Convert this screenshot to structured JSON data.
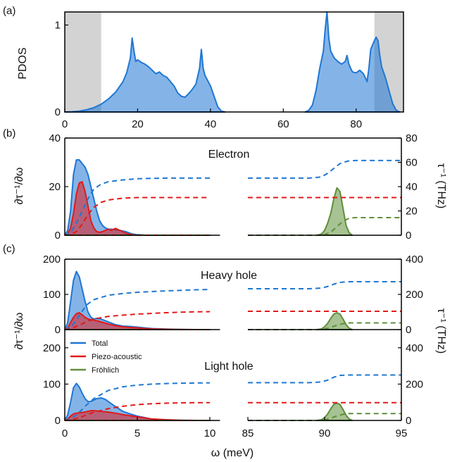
{
  "chart_data": [
    {
      "panel": "(a)",
      "type": "area",
      "ylabel": "PDOS",
      "xlim": [
        0,
        93
      ],
      "ylim": [
        0,
        1.15
      ],
      "xticks": [
        0,
        20,
        40,
        60,
        80
      ],
      "yticks": [
        0,
        1
      ],
      "shaded_regions": [
        [
          0,
          10
        ],
        [
          85,
          93
        ]
      ],
      "color": "#1f77d3",
      "series": [
        {
          "x": [
            0,
            2,
            4,
            6,
            8,
            10,
            12,
            14,
            16,
            17,
            18,
            18.5,
            19,
            19.5,
            20,
            21,
            22,
            23,
            24,
            25,
            26,
            27,
            28,
            29,
            30,
            31,
            32,
            33,
            34,
            35,
            36,
            37,
            37.5,
            38,
            38.5,
            39,
            40,
            41,
            42,
            43,
            44
          ],
          "y": [
            0,
            0.003,
            0.01,
            0.025,
            0.05,
            0.09,
            0.15,
            0.23,
            0.35,
            0.45,
            0.62,
            0.85,
            0.7,
            0.58,
            0.6,
            0.57,
            0.55,
            0.52,
            0.48,
            0.44,
            0.46,
            0.42,
            0.4,
            0.35,
            0.3,
            0.22,
            0.18,
            0.17,
            0.21,
            0.26,
            0.32,
            0.5,
            0.72,
            0.5,
            0.42,
            0.38,
            0.3,
            0.18,
            0.06,
            0.01,
            0
          ]
        },
        {
          "x": [
            66,
            67,
            68,
            69,
            70,
            71,
            71.5,
            72,
            72.5,
            73,
            74,
            75,
            76,
            77,
            77.5,
            78,
            78.5,
            79,
            80,
            81,
            82,
            83,
            83.5,
            84,
            85,
            85.5,
            86,
            86.5,
            87,
            88,
            89,
            90,
            91,
            92
          ],
          "y": [
            0,
            0.02,
            0.08,
            0.25,
            0.5,
            0.7,
            0.95,
            1.15,
            0.85,
            0.7,
            0.62,
            0.58,
            0.55,
            0.58,
            0.65,
            0.55,
            0.5,
            0.46,
            0.45,
            0.48,
            0.44,
            0.35,
            0.5,
            0.72,
            0.82,
            0.86,
            0.82,
            0.65,
            0.52,
            0.4,
            0.25,
            0.1,
            0.02,
            0
          ]
        }
      ]
    },
    {
      "panel": "(b)",
      "type": "area",
      "annotation": "Electron",
      "ylabel_left": "∂τ⁻¹/∂ω",
      "ylabel_right": "τ⁻¹ (THz)",
      "ylim_left": [
        0,
        40
      ],
      "ylim_right": [
        0,
        80
      ],
      "yticks_left": [
        0,
        20,
        40
      ],
      "yticks_right": [
        0,
        20,
        40,
        60,
        80
      ],
      "series": [
        {
          "name": "Total",
          "color": "#1f77d3",
          "x": [
            0,
            0.2,
            0.4,
            0.6,
            0.8,
            1.0,
            1.2,
            1.4,
            1.6,
            1.8,
            2.0,
            2.2,
            2.4,
            2.6,
            2.8,
            3.0,
            3.2,
            3.5,
            3.8,
            4.2,
            4.6,
            5.0,
            5.5,
            6,
            7,
            8,
            9,
            10
          ],
          "y": [
            0,
            2,
            10,
            25,
            31,
            31,
            29.5,
            28,
            25,
            20,
            15,
            10,
            6,
            4,
            3,
            2.5,
            2.5,
            2.2,
            2,
            1.5,
            0.6,
            0.2,
            0.05,
            0,
            0,
            0,
            0,
            0
          ]
        },
        {
          "name": "Piezo-acoustic",
          "color": "#e11a1a",
          "x": [
            0,
            0.2,
            0.4,
            0.6,
            0.8,
            1.0,
            1.2,
            1.4,
            1.6,
            1.8,
            2.0,
            2.2,
            2.4,
            2.6,
            2.8,
            3.0,
            3.2,
            3.5,
            3.8,
            4.2,
            4.6,
            5.0,
            5.5,
            6,
            7,
            8,
            9,
            10
          ],
          "y": [
            0,
            0.5,
            3,
            9,
            17,
            21.5,
            22,
            18,
            12,
            6,
            3,
            1.5,
            1.2,
            1.5,
            2,
            2.5,
            2,
            2.8,
            2,
            0.8,
            0.2,
            0.05,
            0,
            0,
            0,
            0,
            0,
            0
          ]
        },
        {
          "name": "Fröhlich",
          "color": "#5f8f3a",
          "x": [
            89.5,
            89.8,
            90.0,
            90.2,
            90.4,
            90.6,
            90.8,
            91.0,
            91.2,
            91.4,
            91.6,
            91.8
          ],
          "y": [
            0,
            0.5,
            2,
            5,
            9,
            15,
            19.5,
            18,
            11,
            4,
            1,
            0
          ]
        }
      ],
      "cumulative": [
        {
          "name": "Total",
          "color": "#1f77d3",
          "x": [
            0,
            0.4,
            0.8,
            1.2,
            1.6,
            2.0,
            2.5,
            3,
            4,
            5,
            6,
            7,
            8,
            9,
            10,
            85,
            89,
            89.8,
            90.2,
            90.6,
            91.0,
            91.5,
            92,
            93,
            94,
            95
          ],
          "y": [
            0,
            2,
            10,
            20,
            30,
            38,
            42,
            44,
            45.5,
            46.5,
            46.8,
            47,
            47,
            47,
            47,
            47,
            47,
            48,
            51,
            55,
            59,
            61,
            61.5,
            61.5,
            61.5,
            61.5
          ]
        },
        {
          "name": "Piezo-acoustic",
          "color": "#e11a1a",
          "x": [
            0,
            0.4,
            0.8,
            1.2,
            1.6,
            2.0,
            2.5,
            3,
            4,
            5,
            6,
            7,
            8,
            9,
            10,
            85,
            95
          ],
          "y": [
            0,
            0.5,
            3,
            9,
            17,
            23,
            27,
            29,
            30.5,
            31,
            31,
            31,
            31,
            31,
            31,
            31,
            31
          ]
        },
        {
          "name": "Fröhlich",
          "color": "#5f8f3a",
          "x": [
            0,
            10,
            85,
            89.5,
            90.0,
            90.4,
            90.8,
            91.2,
            91.6,
            92,
            95
          ],
          "y": [
            0,
            0,
            0,
            0,
            0.5,
            2.5,
            7,
            11.5,
            14,
            14.5,
            14.5
          ]
        }
      ]
    },
    {
      "panel": "(c)",
      "type": "area",
      "annotation": "Heavy hole",
      "ylabel_left": "∂τ⁻¹/∂ω",
      "ylabel_right": "τ⁻¹ (THz)",
      "ylim_left": [
        0,
        200
      ],
      "ylim_right": [
        0,
        400
      ],
      "yticks_left": [
        0,
        100,
        200
      ],
      "yticks_right": [
        0,
        200,
        400
      ],
      "series": [
        {
          "name": "Total",
          "color": "#1f77d3",
          "x": [
            0,
            0.2,
            0.4,
            0.6,
            0.8,
            1.0,
            1.2,
            1.4,
            1.6,
            1.8,
            2.0,
            2.2,
            2.5,
            3.0,
            3.5,
            4.0,
            4.5,
            5.0,
            5.5,
            6,
            7,
            8,
            9,
            10
          ],
          "y": [
            0,
            20,
            80,
            140,
            165,
            150,
            115,
            80,
            50,
            35,
            30,
            32,
            30,
            22,
            14,
            10,
            9,
            7,
            5,
            3,
            1.5,
            0.5,
            0,
            0
          ]
        },
        {
          "name": "Piezo-acoustic",
          "color": "#e11a1a",
          "x": [
            0,
            0.2,
            0.4,
            0.6,
            0.8,
            1.0,
            1.2,
            1.4,
            1.6,
            1.8,
            2.0,
            2.5,
            3.0,
            3.5,
            4.0,
            4.5,
            5.0,
            5.5,
            6,
            7,
            8,
            9,
            10
          ],
          "y": [
            0,
            5,
            20,
            35,
            45,
            48,
            42,
            35,
            30,
            28,
            27,
            22,
            16,
            11,
            8,
            6,
            5,
            3,
            2,
            1,
            0.3,
            0,
            0
          ]
        },
        {
          "name": "Fröhlich",
          "color": "#5f8f3a",
          "x": [
            89.5,
            89.8,
            90.0,
            90.2,
            90.4,
            90.6,
            90.8,
            91.0,
            91.2,
            91.4,
            91.6,
            91.8
          ],
          "y": [
            0,
            2,
            8,
            18,
            32,
            44,
            48,
            44,
            30,
            14,
            4,
            0
          ]
        }
      ],
      "cumulative": [
        {
          "name": "Total",
          "color": "#1f77d3",
          "x": [
            0,
            0.5,
            1,
            1.5,
            2,
            3,
            4,
            5,
            6,
            7,
            8,
            9,
            10,
            85,
            89,
            89.8,
            90.2,
            90.6,
            91.0,
            91.5,
            92,
            93,
            95
          ],
          "y": [
            0,
            20,
            80,
            140,
            170,
            195,
            205,
            212,
            216,
            220,
            223,
            226,
            228,
            232,
            232,
            236,
            245,
            258,
            268,
            272,
            272,
            272,
            272
          ]
        },
        {
          "name": "Piezo-acoustic",
          "color": "#e11a1a",
          "x": [
            0,
            0.5,
            1,
            1.5,
            2,
            3,
            4,
            5,
            6,
            7,
            8,
            9,
            10,
            85,
            95
          ],
          "y": [
            0,
            8,
            25,
            45,
            60,
            75,
            82,
            88,
            92,
            96,
            99,
            101,
            102,
            104,
            104
          ]
        },
        {
          "name": "Fröhlich",
          "color": "#5f8f3a",
          "x": [
            0,
            10,
            85,
            89.5,
            90.0,
            90.4,
            90.8,
            91.2,
            91.6,
            92,
            95
          ],
          "y": [
            0,
            0,
            0,
            0,
            3,
            12,
            25,
            34,
            38,
            38,
            38
          ]
        }
      ]
    },
    {
      "panel": "",
      "type": "area",
      "annotation": "Light hole",
      "ylim_left": [
        0,
        250
      ],
      "ylim_right": [
        0,
        500
      ],
      "yticks_left": [
        0,
        100,
        200
      ],
      "yticks_right": [
        0,
        200,
        400
      ],
      "xticks_left": [
        0,
        5,
        10
      ],
      "xticks_right": [
        85,
        90,
        95
      ],
      "xlabel": "ω (meV)",
      "legend": {
        "placement": "upper-left",
        "entries": [
          {
            "label": "Total",
            "color": "#1f77d3"
          },
          {
            "label": "Piezo-acoustic",
            "color": "#e11a1a"
          },
          {
            "label": "Fröhlich",
            "color": "#5f8f3a"
          }
        ]
      },
      "series": [
        {
          "name": "Total",
          "color": "#1f77d3",
          "x": [
            0,
            0.2,
            0.4,
            0.6,
            0.8,
            1.0,
            1.2,
            1.4,
            1.6,
            1.8,
            2.0,
            2.2,
            2.5,
            2.8,
            3.0,
            3.5,
            4.0,
            4.5,
            5.0,
            5.5,
            6,
            7,
            8,
            9,
            10
          ],
          "y": [
            0,
            15,
            50,
            90,
            102,
            92,
            75,
            60,
            52,
            52,
            56,
            60,
            62,
            58,
            52,
            38,
            25,
            18,
            12,
            8,
            4,
            1.5,
            0.5,
            0,
            0
          ]
        },
        {
          "name": "Piezo-acoustic",
          "color": "#e11a1a",
          "x": [
            0,
            0.2,
            0.4,
            0.6,
            0.8,
            1.0,
            1.2,
            1.4,
            1.6,
            1.8,
            2.0,
            2.5,
            3.0,
            3.5,
            4.0,
            4.5,
            5.0,
            5.5,
            6,
            7,
            8,
            9,
            10
          ],
          "y": [
            0,
            4,
            12,
            18,
            20,
            21,
            22,
            23,
            25,
            27,
            27,
            25,
            23,
            20,
            16,
            13,
            10,
            7,
            4,
            2,
            0.5,
            0,
            0
          ]
        },
        {
          "name": "Fröhlich",
          "color": "#5f8f3a",
          "x": [
            89.5,
            89.8,
            90.0,
            90.2,
            90.4,
            90.6,
            90.8,
            91.0,
            91.2,
            91.4,
            91.6,
            91.8
          ],
          "y": [
            0,
            2,
            8,
            18,
            32,
            44,
            48,
            44,
            30,
            14,
            4,
            0
          ]
        }
      ],
      "cumulative": [
        {
          "name": "Total",
          "color": "#1f77d3",
          "x": [
            0,
            0.5,
            1,
            1.5,
            2,
            3,
            4,
            5,
            6,
            7,
            8,
            9,
            10,
            85,
            89,
            89.8,
            90.2,
            90.6,
            91.0,
            91.5,
            92,
            93,
            95
          ],
          "y": [
            0,
            12,
            45,
            85,
            120,
            165,
            185,
            195,
            200,
            203,
            205,
            206,
            207,
            208,
            208,
            212,
            222,
            238,
            248,
            250,
            250,
            250,
            250
          ]
        },
        {
          "name": "Piezo-acoustic",
          "color": "#e11a1a",
          "x": [
            0,
            0.5,
            1,
            1.5,
            2,
            3,
            4,
            5,
            6,
            7,
            8,
            9,
            10,
            85,
            95
          ],
          "y": [
            0,
            4,
            15,
            30,
            45,
            65,
            78,
            87,
            92,
            95,
            97,
            98,
            98,
            98,
            98
          ]
        },
        {
          "name": "Fröhlich",
          "color": "#5f8f3a",
          "x": [
            0,
            10,
            85,
            89.5,
            90.0,
            90.4,
            90.8,
            91.2,
            91.6,
            92,
            95
          ],
          "y": [
            0,
            0,
            0,
            0,
            3,
            12,
            25,
            34,
            38,
            38,
            38
          ]
        }
      ]
    }
  ]
}
